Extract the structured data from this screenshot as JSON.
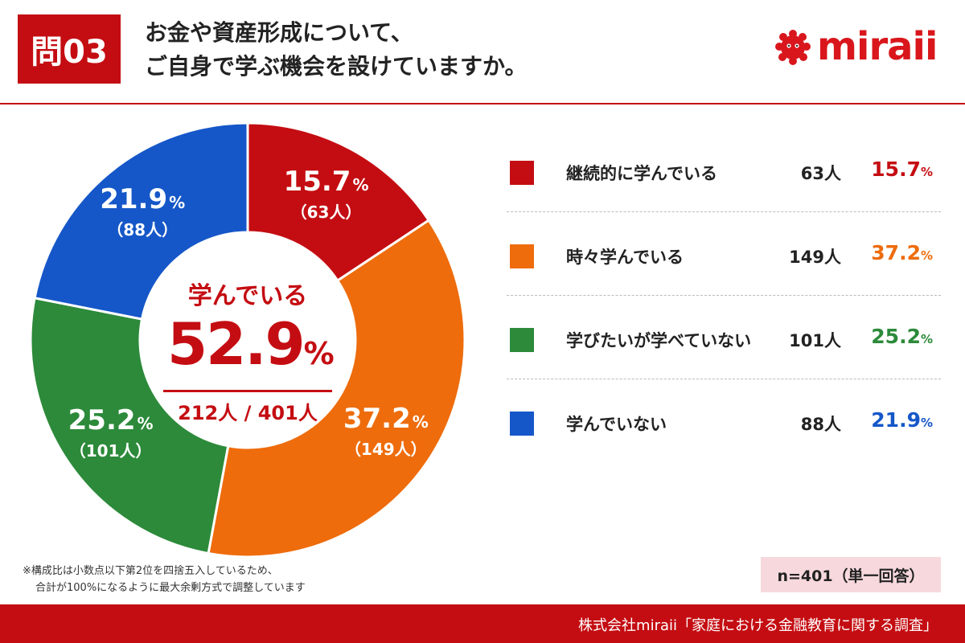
{
  "header": {
    "badge": "問03",
    "title_line1": "お金や資産形成について、",
    "title_line2": "ご自身で学ぶ機会を設けていますか。",
    "logo_text": "miraii",
    "accent_color": "#c40d12"
  },
  "chart_data": {
    "type": "donut",
    "categories": [
      "継続的に学んでいる",
      "時々学んでいる",
      "学びたいが学べていない",
      "学んでいない"
    ],
    "values": [
      15.7,
      37.2,
      25.2,
      21.9
    ],
    "counts": [
      63,
      149,
      101,
      88
    ],
    "colors": [
      "#c40d12",
      "#ee6c0c",
      "#2c8a3a",
      "#1557c8"
    ],
    "value_unit": "%",
    "slice_labels": [
      {
        "pct": "15.7",
        "count": "（63人）"
      },
      {
        "pct": "37.2",
        "count": "（149人）"
      },
      {
        "pct": "25.2",
        "count": "（101人）"
      },
      {
        "pct": "21.9",
        "count": "（88人）"
      }
    ],
    "center": {
      "label": "学んでいる",
      "value": "52.9",
      "unit": "%",
      "count": "212人 / 401人"
    }
  },
  "legend": [
    {
      "label": "継続的に学んでいる",
      "count": "63人",
      "pct": "15.7",
      "color": "#c40d12"
    },
    {
      "label": "時々学んでいる",
      "count": "149人",
      "pct": "37.2",
      "color": "#ee6c0c"
    },
    {
      "label": "学びたいが学べていない",
      "count": "101人",
      "pct": "25.2",
      "color": "#2c8a3a"
    },
    {
      "label": "学んでいない",
      "count": "88人",
      "pct": "21.9",
      "color": "#1557c8"
    }
  ],
  "pct_sign": "%",
  "footnote": {
    "line1": "※構成比は小数点以下第2位を四捨五入しているため、",
    "line2": "合計が100%になるように最大余剰方式で調整しています"
  },
  "sample_note": "n=401（単一回答）",
  "footer_text": "株式会社miraii「家庭における金融教育に関する調査」"
}
